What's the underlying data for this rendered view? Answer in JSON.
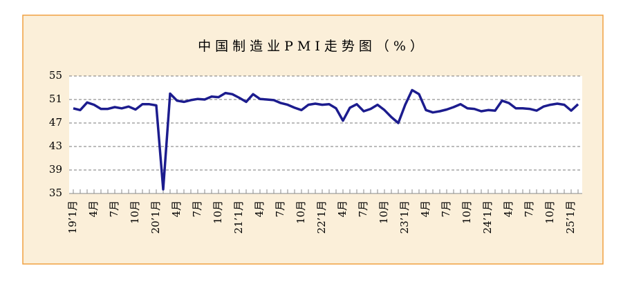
{
  "chart_data": {
    "type": "line",
    "title": "中国制造业PMI走势图（%）",
    "categories": [
      "19’1月",
      null,
      null,
      "4月",
      null,
      null,
      "7月",
      null,
      null,
      "10月",
      null,
      null,
      "20’1月",
      null,
      null,
      "4月",
      null,
      null,
      "7月",
      null,
      null,
      "10月",
      null,
      null,
      "21’1月",
      null,
      null,
      "4月",
      null,
      null,
      "7月",
      null,
      null,
      "10月",
      null,
      null,
      "22’1月",
      null,
      null,
      "4月",
      null,
      null,
      "7月",
      null,
      null,
      "10月",
      null,
      null,
      "23’1月",
      null,
      null,
      "4月",
      null,
      null,
      "7月",
      null,
      null,
      "10月",
      null,
      null,
      "24’1月",
      null,
      null,
      "4月",
      null,
      null,
      "7月",
      null,
      null,
      "10月",
      null,
      null,
      "25’1月",
      null
    ],
    "values": [
      49.5,
      49.2,
      50.5,
      50.1,
      49.4,
      49.4,
      49.7,
      49.5,
      49.8,
      49.3,
      50.2,
      50.2,
      50.0,
      35.7,
      52.0,
      50.8,
      50.6,
      50.9,
      51.1,
      51.0,
      51.5,
      51.4,
      52.1,
      51.9,
      51.3,
      50.6,
      51.9,
      51.1,
      51.0,
      50.9,
      50.4,
      50.1,
      49.6,
      49.2,
      50.1,
      50.3,
      50.1,
      50.2,
      49.5,
      47.4,
      49.6,
      50.2,
      49.0,
      49.4,
      50.1,
      49.2,
      48.0,
      47.0,
      50.1,
      52.6,
      51.9,
      49.2,
      48.8,
      49.0,
      49.3,
      49.7,
      50.2,
      49.5,
      49.4,
      49.0,
      49.2,
      49.1,
      50.8,
      50.4,
      49.5,
      49.5,
      49.4,
      49.1,
      49.8,
      50.1,
      50.3,
      50.1,
      49.1,
      50.2
    ],
    "color": "#1c1c8e",
    "ylim": [
      35,
      55
    ],
    "yticks": [
      35,
      39,
      43,
      47,
      51,
      55
    ],
    "grid": true
  }
}
